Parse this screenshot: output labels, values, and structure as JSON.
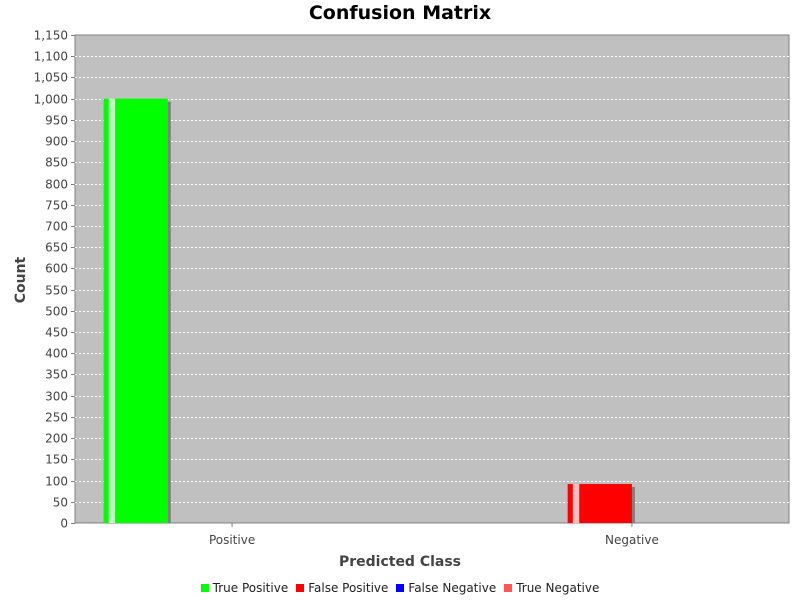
{
  "chart_data": {
    "type": "bar",
    "title": "Confusion Matrix",
    "xlabel": "Predicted Class",
    "ylabel": "Count",
    "categories": [
      "Positive",
      "Negative"
    ],
    "ylim": [
      0,
      1150
    ],
    "ytick_step": 50,
    "grid": true,
    "legend_position": "bottom",
    "series": [
      {
        "name": "True Positive",
        "color": "#00ff00",
        "values": [
          1000,
          0
        ]
      },
      {
        "name": "False Positive",
        "color": "#ff0000",
        "values": [
          0,
          92
        ]
      },
      {
        "name": "False Negative",
        "color": "#0000ff",
        "values": [
          0,
          0
        ]
      },
      {
        "name": "True Negative",
        "color": "#ff5555",
        "values": [
          0,
          0
        ]
      }
    ]
  }
}
